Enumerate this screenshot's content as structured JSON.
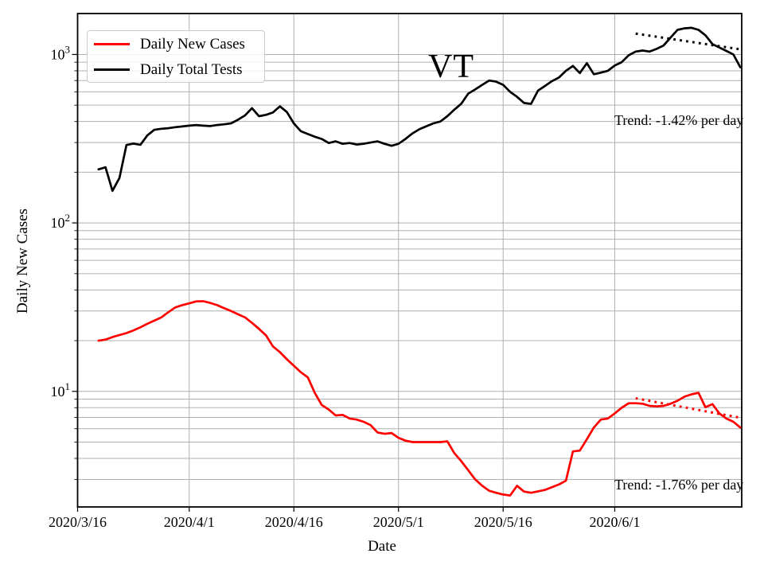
{
  "figure": {
    "background": "#ffffff"
  },
  "chart_data": {
    "type": "line",
    "title": "VT",
    "xlabel": "Date",
    "ylabel": "Daily New Cases",
    "yscale": "log",
    "ylim": [
      2.06,
      1750
    ],
    "x_domain_days": [
      0,
      95.2
    ],
    "grid": true,
    "colors": {
      "grid": "#b0b0b0",
      "spine": "#000000",
      "text": "#000000"
    },
    "x_ticks": [
      {
        "day": 0,
        "label": "2020/3/16"
      },
      {
        "day": 16,
        "label": "2020/4/1"
      },
      {
        "day": 31,
        "label": "2020/4/16"
      },
      {
        "day": 46,
        "label": "2020/5/1"
      },
      {
        "day": 61,
        "label": "2020/5/16"
      },
      {
        "day": 77,
        "label": "2020/6/1"
      }
    ],
    "y_ticks": [
      {
        "value": 10,
        "base": "10",
        "exp": "1"
      },
      {
        "value": 100,
        "base": "10",
        "exp": "2"
      },
      {
        "value": 1000,
        "base": "10",
        "exp": "3"
      }
    ],
    "legend": {
      "position": "upper left",
      "entries": [
        "Daily New Cases",
        "Daily Total Tests"
      ]
    },
    "series": [
      {
        "name": "Daily New Cases",
        "color": "#ff0000",
        "start_day": 3,
        "values": [
          20,
          20.3,
          21,
          21.6,
          22.2,
          23,
          24,
          25.2,
          26.3,
          27.5,
          29.5,
          31.5,
          32.5,
          33.3,
          34.2,
          34.3,
          33.5,
          32.5,
          31.2,
          30,
          28.7,
          27.5,
          25.5,
          23.5,
          21.5,
          18.5,
          17.1,
          15.5,
          14.2,
          13,
          12.1,
          9.8,
          8.3,
          7.8,
          7.2,
          7.25,
          6.9,
          6.8,
          6.6,
          6.3,
          5.7,
          5.6,
          5.66,
          5.3,
          5.1,
          5.0,
          5.0,
          5.0,
          5.0,
          5.0,
          5.05,
          4.3,
          3.85,
          3.4,
          3.0,
          2.75,
          2.57,
          2.5,
          2.44,
          2.41,
          2.75,
          2.54,
          2.5,
          2.55,
          2.6,
          2.7,
          2.8,
          2.95,
          4.4,
          4.45,
          5.2,
          6.1,
          6.8,
          6.9,
          7.4,
          8.0,
          8.5,
          8.5,
          8.45,
          8.2,
          8.15,
          8.2,
          8.45,
          8.8,
          9.3,
          9.6,
          9.8,
          8.05,
          8.4,
          7.4,
          6.9,
          6.6,
          6.1
        ]
      },
      {
        "name": "Daily Total Tests",
        "color": "#000000",
        "start_day": 3,
        "values": [
          208,
          214,
          155,
          185,
          290,
          296,
          291,
          331,
          357,
          362,
          365,
          370,
          374,
          378,
          381,
          378,
          376,
          381,
          385,
          390,
          410,
          435,
          480,
          430,
          438,
          452,
          492,
          455,
          390,
          350,
          337,
          325,
          315,
          298,
          305,
          295,
          298,
          292,
          295,
          300,
          305,
          295,
          287,
          295,
          315,
          340,
          360,
          375,
          390,
          400,
          430,
          470,
          510,
          586,
          620,
          660,
          700,
          690,
          660,
          600,
          560,
          515,
          509,
          610,
          650,
          695,
          730,
          800,
          855,
          776,
          888,
          763,
          780,
          800,
          860,
          900,
          990,
          1040,
          1055,
          1040,
          1080,
          1130,
          1260,
          1400,
          1430,
          1440,
          1400,
          1300,
          1152,
          1100,
          1050,
          1000,
          840
        ]
      }
    ],
    "trends": [
      {
        "label": "Trend: -1.42% per day",
        "series": "Daily Total Tests",
        "color": "#000000",
        "pct_per_day": -1.42,
        "start_day": 80,
        "end_day": 95.2,
        "start_value": 1330
      },
      {
        "label": "Trend: -1.76% per day",
        "series": "Daily New Cases",
        "color": "#ff0000",
        "pct_per_day": -1.76,
        "start_day": 80,
        "end_day": 95.2,
        "start_value": 9.1
      }
    ]
  }
}
